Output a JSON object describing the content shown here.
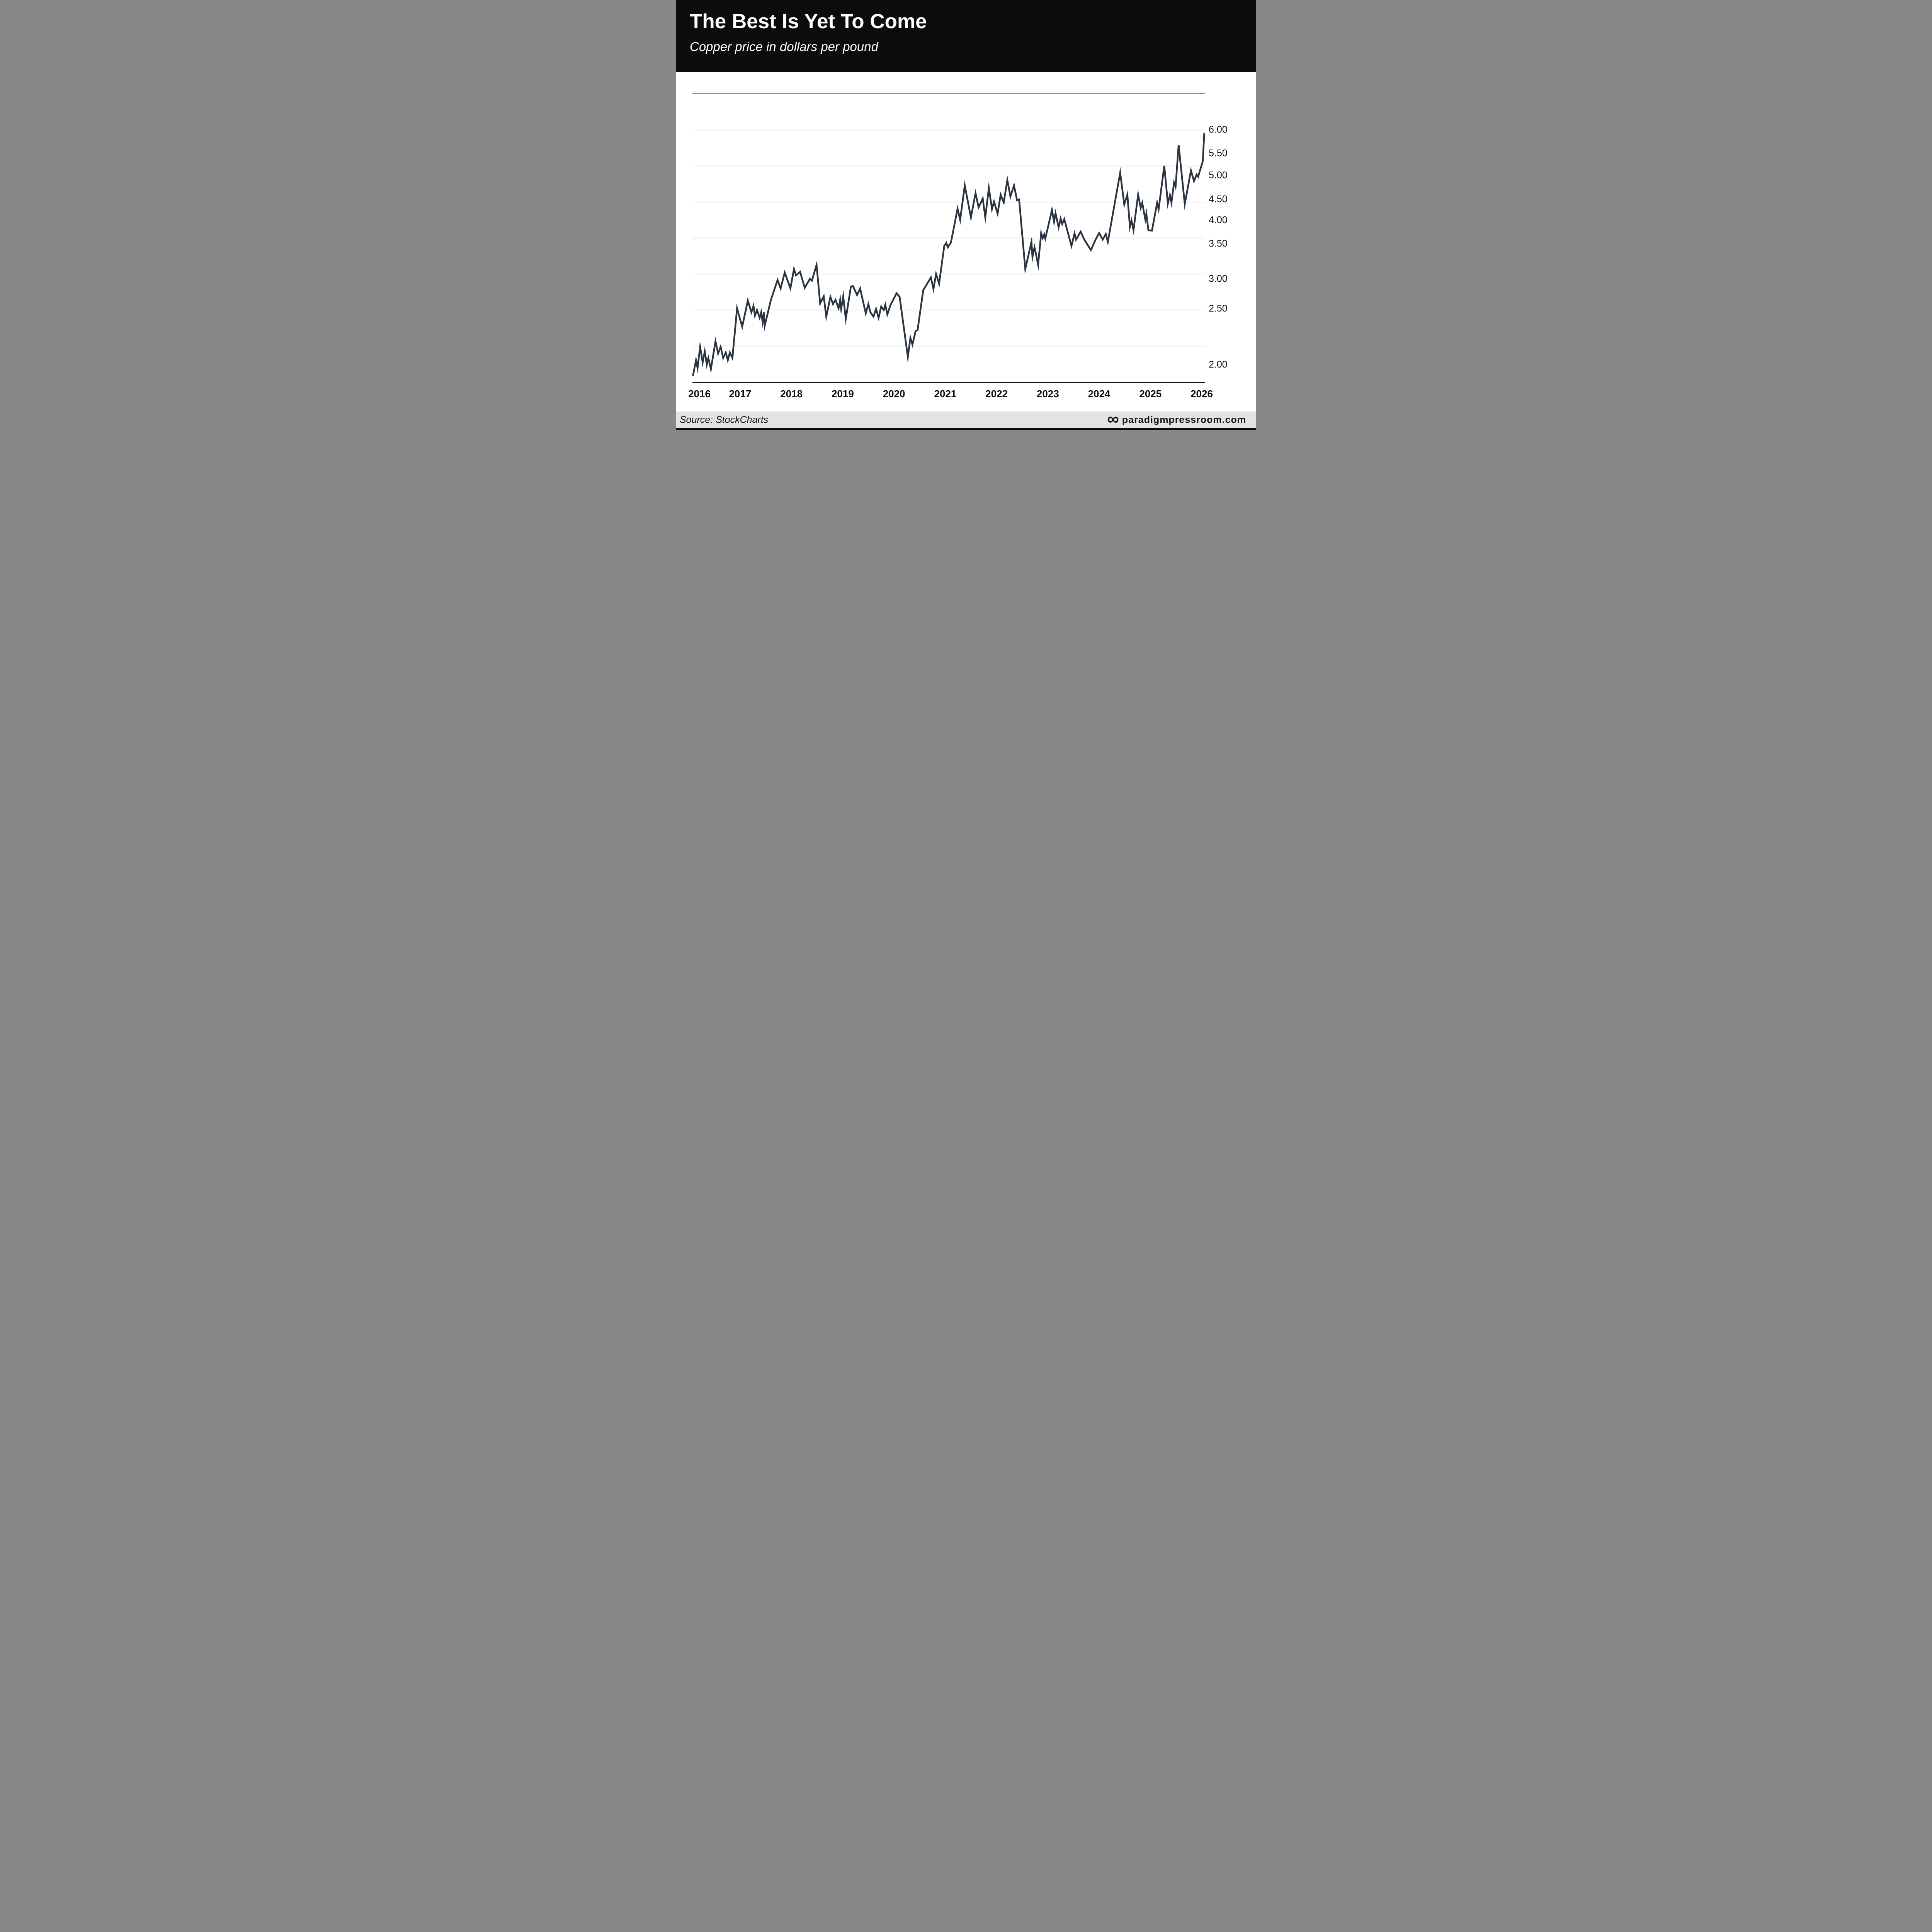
{
  "header": {
    "title": "The Best Is Yet To Come",
    "subtitle": "Copper price in dollars per pound"
  },
  "footer": {
    "source": "Source: StockCharts",
    "logo_icon": "infinity-icon",
    "logo_glyph": "∞",
    "brand": "paradigmpressroom.com"
  },
  "colors": {
    "header_bg": "#0c0c0c",
    "header_text": "#ffffff",
    "page_bg": "#ffffff",
    "line": "#2b3542",
    "gridline": "#c9c9c9",
    "plot_top_border": "#4a4a4a",
    "axis_line": "#151515",
    "label_text": "#0e0e0e",
    "footer_bg": "#e3e3e3"
  },
  "y_axis": {
    "ticks": [
      {
        "value": 6.0,
        "label": "6.00"
      },
      {
        "value": 5.5,
        "label": "5.50"
      },
      {
        "value": 5.0,
        "label": "5.00"
      },
      {
        "value": 4.5,
        "label": "4.50"
      },
      {
        "value": 4.0,
        "label": "4.00"
      },
      {
        "value": 3.5,
        "label": "3.50"
      },
      {
        "value": 3.0,
        "label": "3.00"
      },
      {
        "value": 2.5,
        "label": "2.50"
      },
      {
        "value": 2.0,
        "label": "2.00"
      }
    ]
  },
  "x_axis": {
    "years": [
      "2016",
      "2017",
      "2018",
      "2019",
      "2020",
      "2021",
      "2022",
      "2023",
      "2024",
      "2025",
      "2026"
    ]
  },
  "chart_data": {
    "type": "line",
    "title": "The Best Is Yet To Come",
    "subtitle": "Copper price in dollars per pound",
    "xlabel": "",
    "ylabel": "Copper price, dollars per pound",
    "x_range": [
      2016.07,
      2026.06
    ],
    "ylim": [
      1.85,
      6.15
    ],
    "y_tick_values": [
      6.0,
      5.5,
      5.0,
      4.5,
      4.0,
      3.5,
      3.0,
      2.5,
      2.0
    ],
    "grid": "horizontal",
    "gridline_count": 7,
    "legend": "none",
    "series": [
      {
        "name": "Copper price ($/lb)",
        "points": [
          [
            2016.08,
            1.9
          ],
          [
            2016.14,
            2.04
          ],
          [
            2016.17,
            1.97
          ],
          [
            2016.22,
            2.16
          ],
          [
            2016.27,
            2.02
          ],
          [
            2016.31,
            2.12
          ],
          [
            2016.35,
            2.0
          ],
          [
            2016.38,
            2.06
          ],
          [
            2016.43,
            1.96
          ],
          [
            2016.52,
            2.21
          ],
          [
            2016.57,
            2.1
          ],
          [
            2016.62,
            2.16
          ],
          [
            2016.67,
            2.06
          ],
          [
            2016.72,
            2.11
          ],
          [
            2016.76,
            2.04
          ],
          [
            2016.8,
            2.11
          ],
          [
            2016.85,
            2.06
          ],
          [
            2016.94,
            2.51
          ],
          [
            2017.04,
            2.34
          ],
          [
            2017.15,
            2.64
          ],
          [
            2017.22,
            2.47
          ],
          [
            2017.26,
            2.55
          ],
          [
            2017.29,
            2.44
          ],
          [
            2017.33,
            2.49
          ],
          [
            2017.38,
            2.42
          ],
          [
            2017.41,
            2.47
          ],
          [
            2017.44,
            2.38
          ],
          [
            2017.46,
            2.47
          ],
          [
            2017.48,
            2.35
          ],
          [
            2017.6,
            2.65
          ],
          [
            2017.73,
            2.98
          ],
          [
            2017.79,
            2.84
          ],
          [
            2017.87,
            3.09
          ],
          [
            2017.98,
            2.84
          ],
          [
            2018.05,
            3.14
          ],
          [
            2018.09,
            3.05
          ],
          [
            2018.17,
            3.1
          ],
          [
            2018.26,
            2.85
          ],
          [
            2018.36,
            3.0
          ],
          [
            2018.4,
            2.97
          ],
          [
            2018.49,
            3.2
          ],
          [
            2018.56,
            2.59
          ],
          [
            2018.63,
            2.71
          ],
          [
            2018.68,
            2.43
          ],
          [
            2018.76,
            2.7
          ],
          [
            2018.81,
            2.58
          ],
          [
            2018.86,
            2.65
          ],
          [
            2018.92,
            2.51
          ],
          [
            2018.95,
            2.65
          ],
          [
            2018.97,
            2.5
          ],
          [
            2019.01,
            2.71
          ],
          [
            2019.06,
            2.41
          ],
          [
            2019.16,
            2.87
          ],
          [
            2019.2,
            2.88
          ],
          [
            2019.28,
            2.73
          ],
          [
            2019.34,
            2.84
          ],
          [
            2019.45,
            2.46
          ],
          [
            2019.5,
            2.58
          ],
          [
            2019.54,
            2.47
          ],
          [
            2019.6,
            2.43
          ],
          [
            2019.65,
            2.5
          ],
          [
            2019.7,
            2.42
          ],
          [
            2019.75,
            2.54
          ],
          [
            2019.8,
            2.49
          ],
          [
            2019.83,
            2.57
          ],
          [
            2019.87,
            2.45
          ],
          [
            2019.93,
            2.56
          ],
          [
            2020.05,
            2.76
          ],
          [
            2020.11,
            2.7
          ],
          [
            2020.27,
            2.07
          ],
          [
            2020.32,
            2.24
          ],
          [
            2020.36,
            2.18
          ],
          [
            2020.42,
            2.3
          ],
          [
            2020.46,
            2.31
          ],
          [
            2020.57,
            2.81
          ],
          [
            2020.72,
            3.02
          ],
          [
            2020.77,
            2.83
          ],
          [
            2020.82,
            3.07
          ],
          [
            2020.88,
            2.92
          ],
          [
            2020.98,
            3.47
          ],
          [
            2021.02,
            3.52
          ],
          [
            2021.05,
            3.45
          ],
          [
            2021.11,
            3.53
          ],
          [
            2021.24,
            4.28
          ],
          [
            2021.29,
            4.01
          ],
          [
            2021.38,
            4.79
          ],
          [
            2021.5,
            4.07
          ],
          [
            2021.59,
            4.63
          ],
          [
            2021.65,
            4.31
          ],
          [
            2021.73,
            4.52
          ],
          [
            2021.78,
            4.07
          ],
          [
            2021.85,
            4.74
          ],
          [
            2021.91,
            4.27
          ],
          [
            2021.95,
            4.45
          ],
          [
            2022.02,
            4.16
          ],
          [
            2022.08,
            4.6
          ],
          [
            2022.14,
            4.43
          ],
          [
            2022.21,
            4.9
          ],
          [
            2022.27,
            4.56
          ],
          [
            2022.34,
            4.79
          ],
          [
            2022.4,
            4.48
          ],
          [
            2022.44,
            4.5
          ],
          [
            2022.56,
            3.14
          ],
          [
            2022.68,
            3.54
          ],
          [
            2022.7,
            3.31
          ],
          [
            2022.74,
            3.45
          ],
          [
            2022.77,
            3.35
          ],
          [
            2022.81,
            3.2
          ],
          [
            2022.87,
            3.73
          ],
          [
            2022.9,
            3.62
          ],
          [
            2022.93,
            3.7
          ],
          [
            2022.95,
            3.61
          ],
          [
            2023.08,
            4.25
          ],
          [
            2023.12,
            3.97
          ],
          [
            2023.15,
            4.17
          ],
          [
            2023.21,
            3.85
          ],
          [
            2023.25,
            4.04
          ],
          [
            2023.28,
            3.92
          ],
          [
            2023.32,
            4.03
          ],
          [
            2023.46,
            3.47
          ],
          [
            2023.52,
            3.72
          ],
          [
            2023.55,
            3.59
          ],
          [
            2023.64,
            3.76
          ],
          [
            2023.71,
            3.59
          ],
          [
            2023.84,
            3.41
          ],
          [
            2023.93,
            3.59
          ],
          [
            2024.0,
            3.73
          ],
          [
            2024.07,
            3.59
          ],
          [
            2024.13,
            3.71
          ],
          [
            2024.17,
            3.54
          ],
          [
            2024.41,
            5.06
          ],
          [
            2024.49,
            4.38
          ],
          [
            2024.55,
            4.6
          ],
          [
            2024.6,
            3.86
          ],
          [
            2024.63,
            4.0
          ],
          [
            2024.67,
            3.79
          ],
          [
            2024.76,
            4.6
          ],
          [
            2024.81,
            4.3
          ],
          [
            2024.84,
            4.42
          ],
          [
            2024.9,
            4.02
          ],
          [
            2024.92,
            4.16
          ],
          [
            2024.96,
            3.79
          ],
          [
            2025.03,
            3.78
          ],
          [
            2025.13,
            4.42
          ],
          [
            2025.16,
            4.26
          ],
          [
            2025.27,
            5.22
          ],
          [
            2025.34,
            4.4
          ],
          [
            2025.38,
            4.59
          ],
          [
            2025.41,
            4.42
          ],
          [
            2025.46,
            4.85
          ],
          [
            2025.49,
            4.76
          ],
          [
            2025.55,
            5.68
          ],
          [
            2025.67,
            4.39
          ],
          [
            2025.79,
            5.11
          ],
          [
            2025.85,
            4.88
          ],
          [
            2025.9,
            5.02
          ],
          [
            2025.93,
            4.97
          ],
          [
            2026.02,
            5.32
          ],
          [
            2026.05,
            5.93
          ]
        ]
      }
    ]
  }
}
